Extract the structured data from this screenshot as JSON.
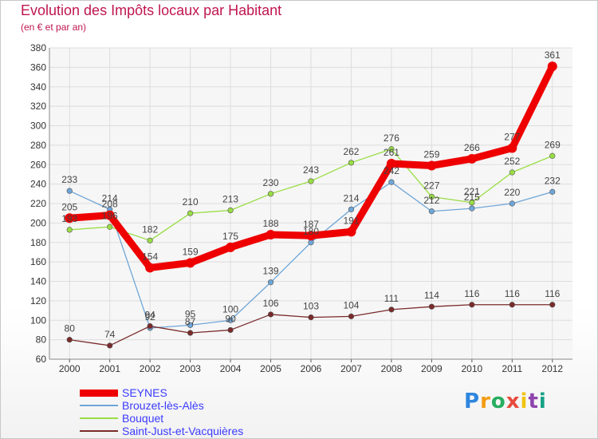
{
  "chart_data": {
    "type": "line",
    "title": "Evolution des Impôts locaux par Habitant",
    "subtitle": "(en € et par an)",
    "xlabel": "",
    "ylabel": "",
    "ylim": [
      60,
      380
    ],
    "yticks": [
      60,
      80,
      100,
      120,
      140,
      160,
      180,
      200,
      220,
      240,
      260,
      280,
      300,
      320,
      340,
      360,
      380
    ],
    "grid": true,
    "legend_position": "bottom-left",
    "categories": [
      "2000",
      "2001",
      "2002",
      "2003",
      "2004",
      "2005",
      "2006",
      "2007",
      "2008",
      "2009",
      "2010",
      "2011",
      "2012"
    ],
    "series": [
      {
        "name": "SEYNES",
        "color": "#ee0000",
        "values": [
          205,
          208,
          154,
          159,
          175,
          188,
          187,
          191,
          261,
          259,
          266,
          277,
          361
        ]
      },
      {
        "name": "Brouzet-lès-Alès",
        "color": "#6fa6d8",
        "values": [
          233,
          214,
          92,
          95,
          100,
          139,
          180,
          214,
          242,
          212,
          215,
          220,
          232
        ]
      },
      {
        "name": "Bouquet",
        "color": "#99dd44",
        "values": [
          193,
          196,
          182,
          210,
          213,
          230,
          243,
          262,
          276,
          227,
          221,
          252,
          269
        ]
      },
      {
        "name": "Saint-Just-et-Vacquières",
        "color": "#7a2a2a",
        "values": [
          80,
          74,
          94,
          87,
          90,
          106,
          103,
          104,
          111,
          114,
          116,
          116,
          116
        ]
      }
    ]
  },
  "branding": {
    "logo_text": "Proxiti"
  }
}
